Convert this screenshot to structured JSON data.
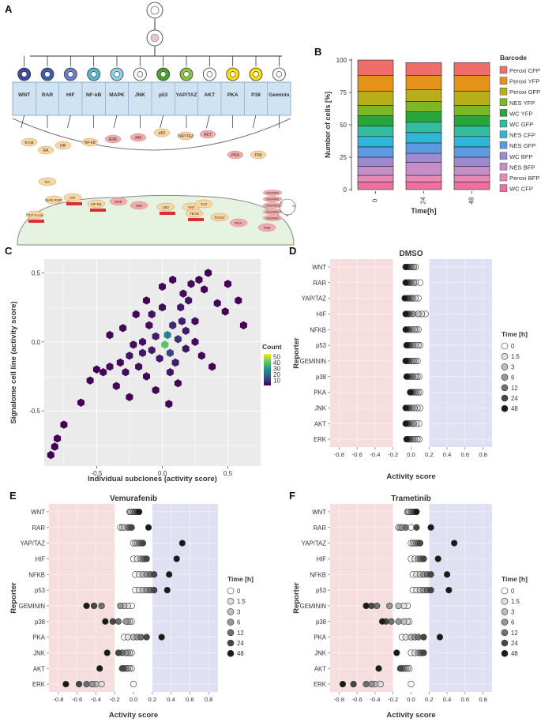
{
  "panels": {
    "A": {
      "letter": "A",
      "reporters": [
        "WNT",
        "RAR",
        "HIF",
        "NF-kB",
        "MAPK",
        "JNK",
        "p53",
        "YAP/TAZ",
        "AKT",
        "PKA",
        "P38",
        "Geminin"
      ],
      "colors": [
        "#3b4aa0",
        "#3b5fb0",
        "#6a7fc8",
        "#57b6cc",
        "#8fd3e6",
        "#ffffff",
        "#4aa32e",
        "#8cc63f",
        "#ffffff",
        "#ffe000",
        "#ffe000",
        "#ffffff"
      ],
      "pathway_labels": [
        {
          "id": "bcat",
          "text": "b-cat"
        },
        {
          "id": "ra",
          "text": "RA"
        },
        {
          "id": "hif",
          "text": "HIF"
        },
        {
          "id": "nfkb",
          "text": "NF-kB"
        },
        {
          "id": "erk",
          "text": "ERK"
        },
        {
          "id": "jnk",
          "text": "JNK"
        },
        {
          "id": "p53",
          "text": "p53"
        },
        {
          "id": "yaptaz",
          "text": "YAP/TAZ"
        },
        {
          "id": "akt",
          "text": "AKT"
        },
        {
          "id": "pka",
          "text": "PKA"
        },
        {
          "id": "p38",
          "text": "P38"
        }
      ],
      "nucleus_labels": [
        {
          "id": "tcf",
          "text": "TCF b-cat"
        },
        {
          "id": "rarxr1",
          "text": "RA"
        },
        {
          "id": "rarxr2",
          "text": "RAR RXR"
        },
        {
          "id": "hifn",
          "text": "HIF"
        },
        {
          "id": "nfkbn",
          "text": "NF-kB"
        },
        {
          "id": "erkn",
          "text": "ERK"
        },
        {
          "id": "jnkn",
          "text": "JNK"
        },
        {
          "id": "p53n",
          "text": "p53"
        },
        {
          "id": "yapn",
          "text": "YAP"
        },
        {
          "id": "tazn",
          "text": "TAZ"
        },
        {
          "id": "tead",
          "text": "TEAD"
        },
        {
          "id": "foxo",
          "text": "FOXO"
        },
        {
          "id": "pkan",
          "text": "PKA"
        },
        {
          "id": "p38n",
          "text": "P38"
        }
      ],
      "geminin_labels": [
        "GEMININ",
        "GEMININ",
        "GEMININ",
        "GEMININ",
        "GEMININ"
      ],
      "cycle_labels": {
        "g1": "G1",
        "s": "S",
        "m": "M"
      }
    },
    "B": {
      "letter": "B"
    },
    "C": {
      "letter": "C"
    },
    "D": {
      "letter": "D"
    },
    "E": {
      "letter": "E"
    },
    "F": {
      "letter": "F"
    }
  },
  "chart_data": [
    {
      "id": "B",
      "type": "bar",
      "stacked": true,
      "xlabel": "Time[h]",
      "ylabel": "Number of cells [%]",
      "categories": [
        "0",
        "24",
        "48"
      ],
      "ylim": [
        0,
        100
      ],
      "yticks": [
        0,
        25,
        50,
        75,
        100
      ],
      "legend_title": "Barcode",
      "legend_position": "right",
      "series": [
        {
          "name": "WC CFP",
          "color": "#ef6fa0",
          "values": [
            6,
            6,
            6
          ]
        },
        {
          "name": "Peroxi BFP",
          "color": "#e58bb8",
          "values": [
            5,
            5,
            5
          ]
        },
        {
          "name": "NES BFP",
          "color": "#c58ec9",
          "values": [
            7,
            10,
            7
          ]
        },
        {
          "name": "WC BFP",
          "color": "#9e8ad0",
          "values": [
            7,
            7,
            7
          ]
        },
        {
          "name": "NES GFP",
          "color": "#5c9be0",
          "values": [
            8,
            8,
            8
          ]
        },
        {
          "name": "NES CFP",
          "color": "#2fb6d8",
          "values": [
            8,
            8,
            8
          ]
        },
        {
          "name": "WC GFP",
          "color": "#33bca0",
          "values": [
            8,
            8,
            8
          ]
        },
        {
          "name": "WC YFP",
          "color": "#2aa43c",
          "values": [
            8,
            8,
            8
          ]
        },
        {
          "name": "NES YFP",
          "color": "#7cb826",
          "values": [
            8,
            8,
            8
          ]
        },
        {
          "name": "Peroxi GFP",
          "color": "#b8ae1c",
          "values": [
            11,
            9,
            11
          ]
        },
        {
          "name": "Peroxi YFP",
          "color": "#e49218",
          "values": [
            12,
            11,
            12
          ]
        },
        {
          "name": "Peroxi CFP",
          "color": "#ef6e6a",
          "values": [
            12,
            10,
            10
          ]
        }
      ],
      "legend_order": [
        "Peroxi CFP",
        "Peroxi YFP",
        "Peroxi GFP",
        "NES YFP",
        "WC YFP",
        "WC GFP",
        "NES CFP",
        "NES GFP",
        "WC BFP",
        "NES BFP",
        "Peroxi BFP",
        "WC CFP"
      ]
    },
    {
      "id": "C",
      "type": "heatmap",
      "subtype": "hexbin",
      "xlabel": "Individual subclones (activity score)",
      "ylabel": "Signalome cell line (activity score)",
      "xlim": [
        -0.9,
        0.75
      ],
      "ylim": [
        -0.9,
        0.6
      ],
      "xticks": [
        -0.5,
        0.0,
        0.5
      ],
      "xtick_labels": [
        "-0.5",
        "0.0",
        "0.5"
      ],
      "yticks": [
        -0.5,
        0.0,
        0.5
      ],
      "ytick_labels": [
        "-0.5",
        "0.0",
        "0.5"
      ],
      "colorbar_title": "Count",
      "colorbar_ticks": [
        10,
        20,
        30,
        40,
        50
      ],
      "colorbar_range": [
        1,
        55
      ],
      "bins": [
        [
          -0.85,
          -0.82,
          1
        ],
        [
          -0.82,
          -0.76,
          1
        ],
        [
          -0.8,
          -0.7,
          1
        ],
        [
          -0.75,
          -0.6,
          1
        ],
        [
          -0.62,
          -0.44,
          1
        ],
        [
          -0.55,
          -0.28,
          2
        ],
        [
          -0.5,
          -0.2,
          1
        ],
        [
          -0.45,
          -0.22,
          2
        ],
        [
          -0.4,
          -0.18,
          3
        ],
        [
          -0.35,
          -0.32,
          2
        ],
        [
          -0.32,
          -0.15,
          2
        ],
        [
          -0.28,
          -0.22,
          3
        ],
        [
          -0.25,
          -0.1,
          4
        ],
        [
          -0.22,
          -0.02,
          3
        ],
        [
          -0.18,
          -0.18,
          3
        ],
        [
          -0.15,
          0.0,
          4
        ],
        [
          -0.12,
          -0.25,
          2
        ],
        [
          -0.1,
          0.12,
          3
        ],
        [
          -0.08,
          -0.06,
          5
        ],
        [
          -0.05,
          0.04,
          6
        ],
        [
          -0.02,
          -0.12,
          5
        ],
        [
          0.0,
          0.25,
          3
        ],
        [
          0.02,
          -0.02,
          40
        ],
        [
          0.04,
          0.05,
          25
        ],
        [
          0.06,
          -0.08,
          12
        ],
        [
          0.08,
          0.12,
          8
        ],
        [
          0.1,
          -0.15,
          6
        ],
        [
          0.12,
          0.02,
          9
        ],
        [
          0.14,
          0.25,
          5
        ],
        [
          0.16,
          0.35,
          3
        ],
        [
          0.18,
          -0.05,
          4
        ],
        [
          0.2,
          0.3,
          4
        ],
        [
          0.22,
          0.42,
          3
        ],
        [
          0.25,
          0.15,
          3
        ],
        [
          0.28,
          0.45,
          2
        ],
        [
          0.32,
          0.38,
          2
        ],
        [
          0.35,
          0.5,
          1
        ],
        [
          0.42,
          0.28,
          2
        ],
        [
          0.48,
          0.22,
          1
        ],
        [
          0.5,
          0.42,
          1
        ],
        [
          0.58,
          0.3,
          1
        ],
        [
          0.62,
          0.12,
          1
        ],
        [
          0.3,
          -0.1,
          2
        ],
        [
          0.38,
          -0.18,
          1
        ],
        [
          -0.4,
          0.05,
          2
        ],
        [
          -0.3,
          0.1,
          2
        ],
        [
          -0.2,
          0.2,
          2
        ],
        [
          -0.25,
          -0.4,
          1
        ],
        [
          -0.05,
          -0.35,
          2
        ],
        [
          0.05,
          -0.45,
          1
        ],
        [
          0.12,
          -0.3,
          2
        ],
        [
          0.0,
          0.4,
          2
        ],
        [
          -0.12,
          0.3,
          1
        ],
        [
          0.08,
          0.45,
          1
        ],
        [
          0.25,
          0.0,
          3
        ],
        [
          -0.08,
          0.2,
          4
        ],
        [
          0.15,
          0.15,
          6
        ],
        [
          -0.15,
          -0.08,
          5
        ],
        [
          0.06,
          -0.22,
          4
        ],
        [
          0.18,
          0.08,
          5
        ]
      ]
    },
    {
      "id": "D",
      "type": "scatter",
      "title": "DMSO",
      "xlabel": "Activity score",
      "ylabel": "Reporter",
      "xlim": [
        -0.9,
        0.9
      ],
      "xticks": [
        -0.8,
        -0.6,
        -0.4,
        -0.2,
        0.0,
        0.2,
        0.4,
        0.6,
        0.8
      ],
      "xtick_labels": [
        "-0.8",
        "-0.6",
        "-0.4",
        "-0.2",
        "0.0",
        "0.2",
        "0.4",
        "0.6",
        "0.8"
      ],
      "shaded_regions": [
        {
          "from": -0.9,
          "to": -0.2,
          "color": "#f7dede"
        },
        {
          "from": 0.2,
          "to": 0.9,
          "color": "#dfe1f2"
        }
      ],
      "categories": [
        "WNT",
        "RAR",
        "YAP/TAZ",
        "HIF",
        "NFKB",
        "p53",
        "GEMININ",
        "p38",
        "PKA",
        "JNK",
        "AKT",
        "ERK"
      ],
      "legend_title": "Time [h]",
      "times": [
        "0",
        "1.5",
        "3",
        "6",
        "12",
        "24",
        "48"
      ],
      "time_colors": [
        "#ffffff",
        "#dedede",
        "#bdbdbd",
        "#969696",
        "#707070",
        "#474747",
        "#1a1a1a"
      ],
      "values": {
        "WNT": [
          0.05,
          0.02,
          0.03,
          0.0,
          -0.02,
          -0.04,
          -0.06
        ],
        "RAR": [
          0.1,
          0.05,
          0.03,
          0.0,
          -0.02,
          -0.04,
          -0.06
        ],
        "YAP/TAZ": [
          0.08,
          0.05,
          0.02,
          0.0,
          -0.02,
          -0.04,
          -0.07
        ],
        "HIF": [
          0.16,
          0.12,
          0.08,
          0.02,
          -0.02,
          -0.04,
          -0.06
        ],
        "NFKB": [
          0.08,
          0.06,
          0.04,
          0.01,
          -0.02,
          -0.04,
          -0.06
        ],
        "p53": [
          0.1,
          0.08,
          0.05,
          0.02,
          -0.01,
          -0.03,
          -0.05
        ],
        "GEMININ": [
          0.07,
          0.05,
          0.03,
          0.01,
          -0.02,
          -0.04,
          -0.06
        ],
        "p38": [
          0.09,
          0.07,
          0.05,
          0.02,
          0.0,
          -0.03,
          -0.05
        ],
        "PKA": [
          0.1,
          0.08,
          0.06,
          0.04,
          0.02,
          0.0,
          -0.01
        ],
        "JNK": [
          0.1,
          0.07,
          0.04,
          0.01,
          -0.02,
          -0.04,
          -0.06
        ],
        "AKT": [
          0.09,
          0.06,
          0.03,
          0.01,
          -0.02,
          -0.04,
          -0.06
        ],
        "ERK": [
          0.09,
          0.07,
          0.04,
          0.02,
          -0.01,
          -0.03,
          -0.05
        ]
      }
    },
    {
      "id": "E",
      "type": "scatter",
      "title": "Vemurafenib",
      "xlabel": "Activity score",
      "ylabel": "Reporter",
      "xlim": [
        -0.9,
        0.9
      ],
      "xticks": [
        -0.8,
        -0.6,
        -0.4,
        -0.2,
        0.0,
        0.2,
        0.4,
        0.6,
        0.8
      ],
      "xtick_labels": [
        "-0.8",
        "-0.6",
        "-0.4",
        "-0.2",
        "0.0",
        "0.2",
        "0.4",
        "0.6",
        "0.8"
      ],
      "shaded_regions": [
        {
          "from": -0.9,
          "to": -0.2,
          "color": "#f7dede"
        },
        {
          "from": 0.2,
          "to": 0.9,
          "color": "#dfe1f2"
        }
      ],
      "categories": [
        "WNT",
        "RAR",
        "YAP/TAZ",
        "HIF",
        "NFKB",
        "p53",
        "GEMININ",
        "p38",
        "PKA",
        "JNK",
        "AKT",
        "ERK"
      ],
      "legend_title": "Time [h]",
      "times": [
        "0",
        "1.5",
        "3",
        "6",
        "12",
        "24",
        "48"
      ],
      "time_colors": [
        "#ffffff",
        "#dedede",
        "#bdbdbd",
        "#969696",
        "#707070",
        "#474747",
        "#1a1a1a"
      ],
      "values": {
        "WNT": [
          -0.02,
          -0.04,
          -0.03,
          0.0,
          0.02,
          0.04,
          0.06
        ],
        "RAR": [
          -0.14,
          -0.12,
          -0.1,
          -0.06,
          -0.04,
          -0.02,
          0.16
        ],
        "YAP/TAZ": [
          0.0,
          0.02,
          0.04,
          0.06,
          0.08,
          0.1,
          0.52
        ],
        "HIF": [
          0.0,
          0.04,
          0.08,
          0.1,
          0.12,
          0.14,
          0.46
        ],
        "NFKB": [
          0.02,
          0.06,
          0.1,
          0.14,
          0.18,
          0.22,
          0.38
        ],
        "p53": [
          0.02,
          0.06,
          0.1,
          0.14,
          0.18,
          0.22,
          0.36
        ],
        "GEMININ": [
          -0.02,
          -0.06,
          -0.1,
          -0.14,
          -0.34,
          -0.42,
          -0.5
        ],
        "p38": [
          -0.02,
          -0.04,
          -0.06,
          -0.08,
          -0.16,
          -0.22,
          -0.3
        ],
        "PKA": [
          -0.1,
          -0.06,
          0.0,
          0.04,
          0.08,
          0.14,
          0.3
        ],
        "JNK": [
          -0.02,
          -0.04,
          -0.06,
          -0.08,
          -0.12,
          -0.16,
          -0.28
        ],
        "AKT": [
          -0.02,
          -0.04,
          -0.06,
          -0.08,
          -0.1,
          -0.12,
          -0.36
        ],
        "ERK": [
          0.0,
          -0.34,
          -0.4,
          -0.44,
          -0.5,
          -0.58,
          -0.72
        ]
      }
    },
    {
      "id": "F",
      "type": "scatter",
      "title": "Trametinib",
      "xlabel": "Activity score",
      "ylabel": "Reporter",
      "xlim": [
        -0.9,
        0.9
      ],
      "xticks": [
        -0.8,
        -0.6,
        -0.4,
        -0.2,
        0.0,
        0.2,
        0.4,
        0.6,
        0.8
      ],
      "xtick_labels": [
        "-0.8",
        "-0.6",
        "-0.4",
        "-0.2",
        "0.0",
        "0.2",
        "0.4",
        "0.6",
        "0.8"
      ],
      "shaded_regions": [
        {
          "from": -0.9,
          "to": -0.2,
          "color": "#f7dede"
        },
        {
          "from": 0.2,
          "to": 0.9,
          "color": "#dfe1f2"
        }
      ],
      "categories": [
        "WNT",
        "RAR",
        "YAP/TAZ",
        "HIF",
        "NFKB",
        "p53",
        "GEMININ",
        "p38",
        "PKA",
        "JNK",
        "AKT",
        "ERK"
      ],
      "legend_title": "Time [h]",
      "times": [
        "0",
        "1.5",
        "3",
        "6",
        "12",
        "24",
        "48"
      ],
      "time_colors": [
        "#ffffff",
        "#dedede",
        "#bdbdbd",
        "#969696",
        "#707070",
        "#474747",
        "#1a1a1a"
      ],
      "values": {
        "WNT": [
          -0.02,
          -0.04,
          -0.03,
          0.0,
          0.02,
          0.04,
          0.06
        ],
        "RAR": [
          0.0,
          -0.14,
          -0.12,
          -0.1,
          -0.06,
          0.06,
          0.22
        ],
        "YAP/TAZ": [
          0.0,
          0.02,
          0.04,
          0.06,
          0.08,
          0.1,
          0.48
        ],
        "HIF": [
          0.0,
          0.04,
          0.08,
          0.1,
          0.12,
          0.14,
          0.3
        ],
        "NFKB": [
          0.02,
          0.06,
          0.1,
          0.14,
          0.18,
          0.22,
          0.4
        ],
        "p53": [
          0.02,
          0.06,
          0.1,
          0.14,
          0.18,
          0.22,
          0.42
        ],
        "GEMININ": [
          -0.04,
          -0.08,
          -0.14,
          -0.24,
          -0.38,
          -0.44,
          -0.5
        ],
        "p38": [
          -0.02,
          -0.04,
          -0.08,
          -0.14,
          -0.22,
          -0.28,
          -0.32
        ],
        "PKA": [
          -0.1,
          -0.06,
          0.0,
          0.04,
          0.08,
          0.14,
          0.32
        ],
        "JNK": [
          0.0,
          0.04,
          0.08,
          0.1,
          0.12,
          0.14,
          -0.16
        ],
        "AKT": [
          -0.02,
          -0.04,
          -0.06,
          -0.08,
          -0.1,
          -0.12,
          -0.36
        ],
        "ERK": [
          0.0,
          -0.34,
          -0.4,
          -0.44,
          -0.5,
          -0.64,
          -0.76
        ]
      }
    }
  ]
}
